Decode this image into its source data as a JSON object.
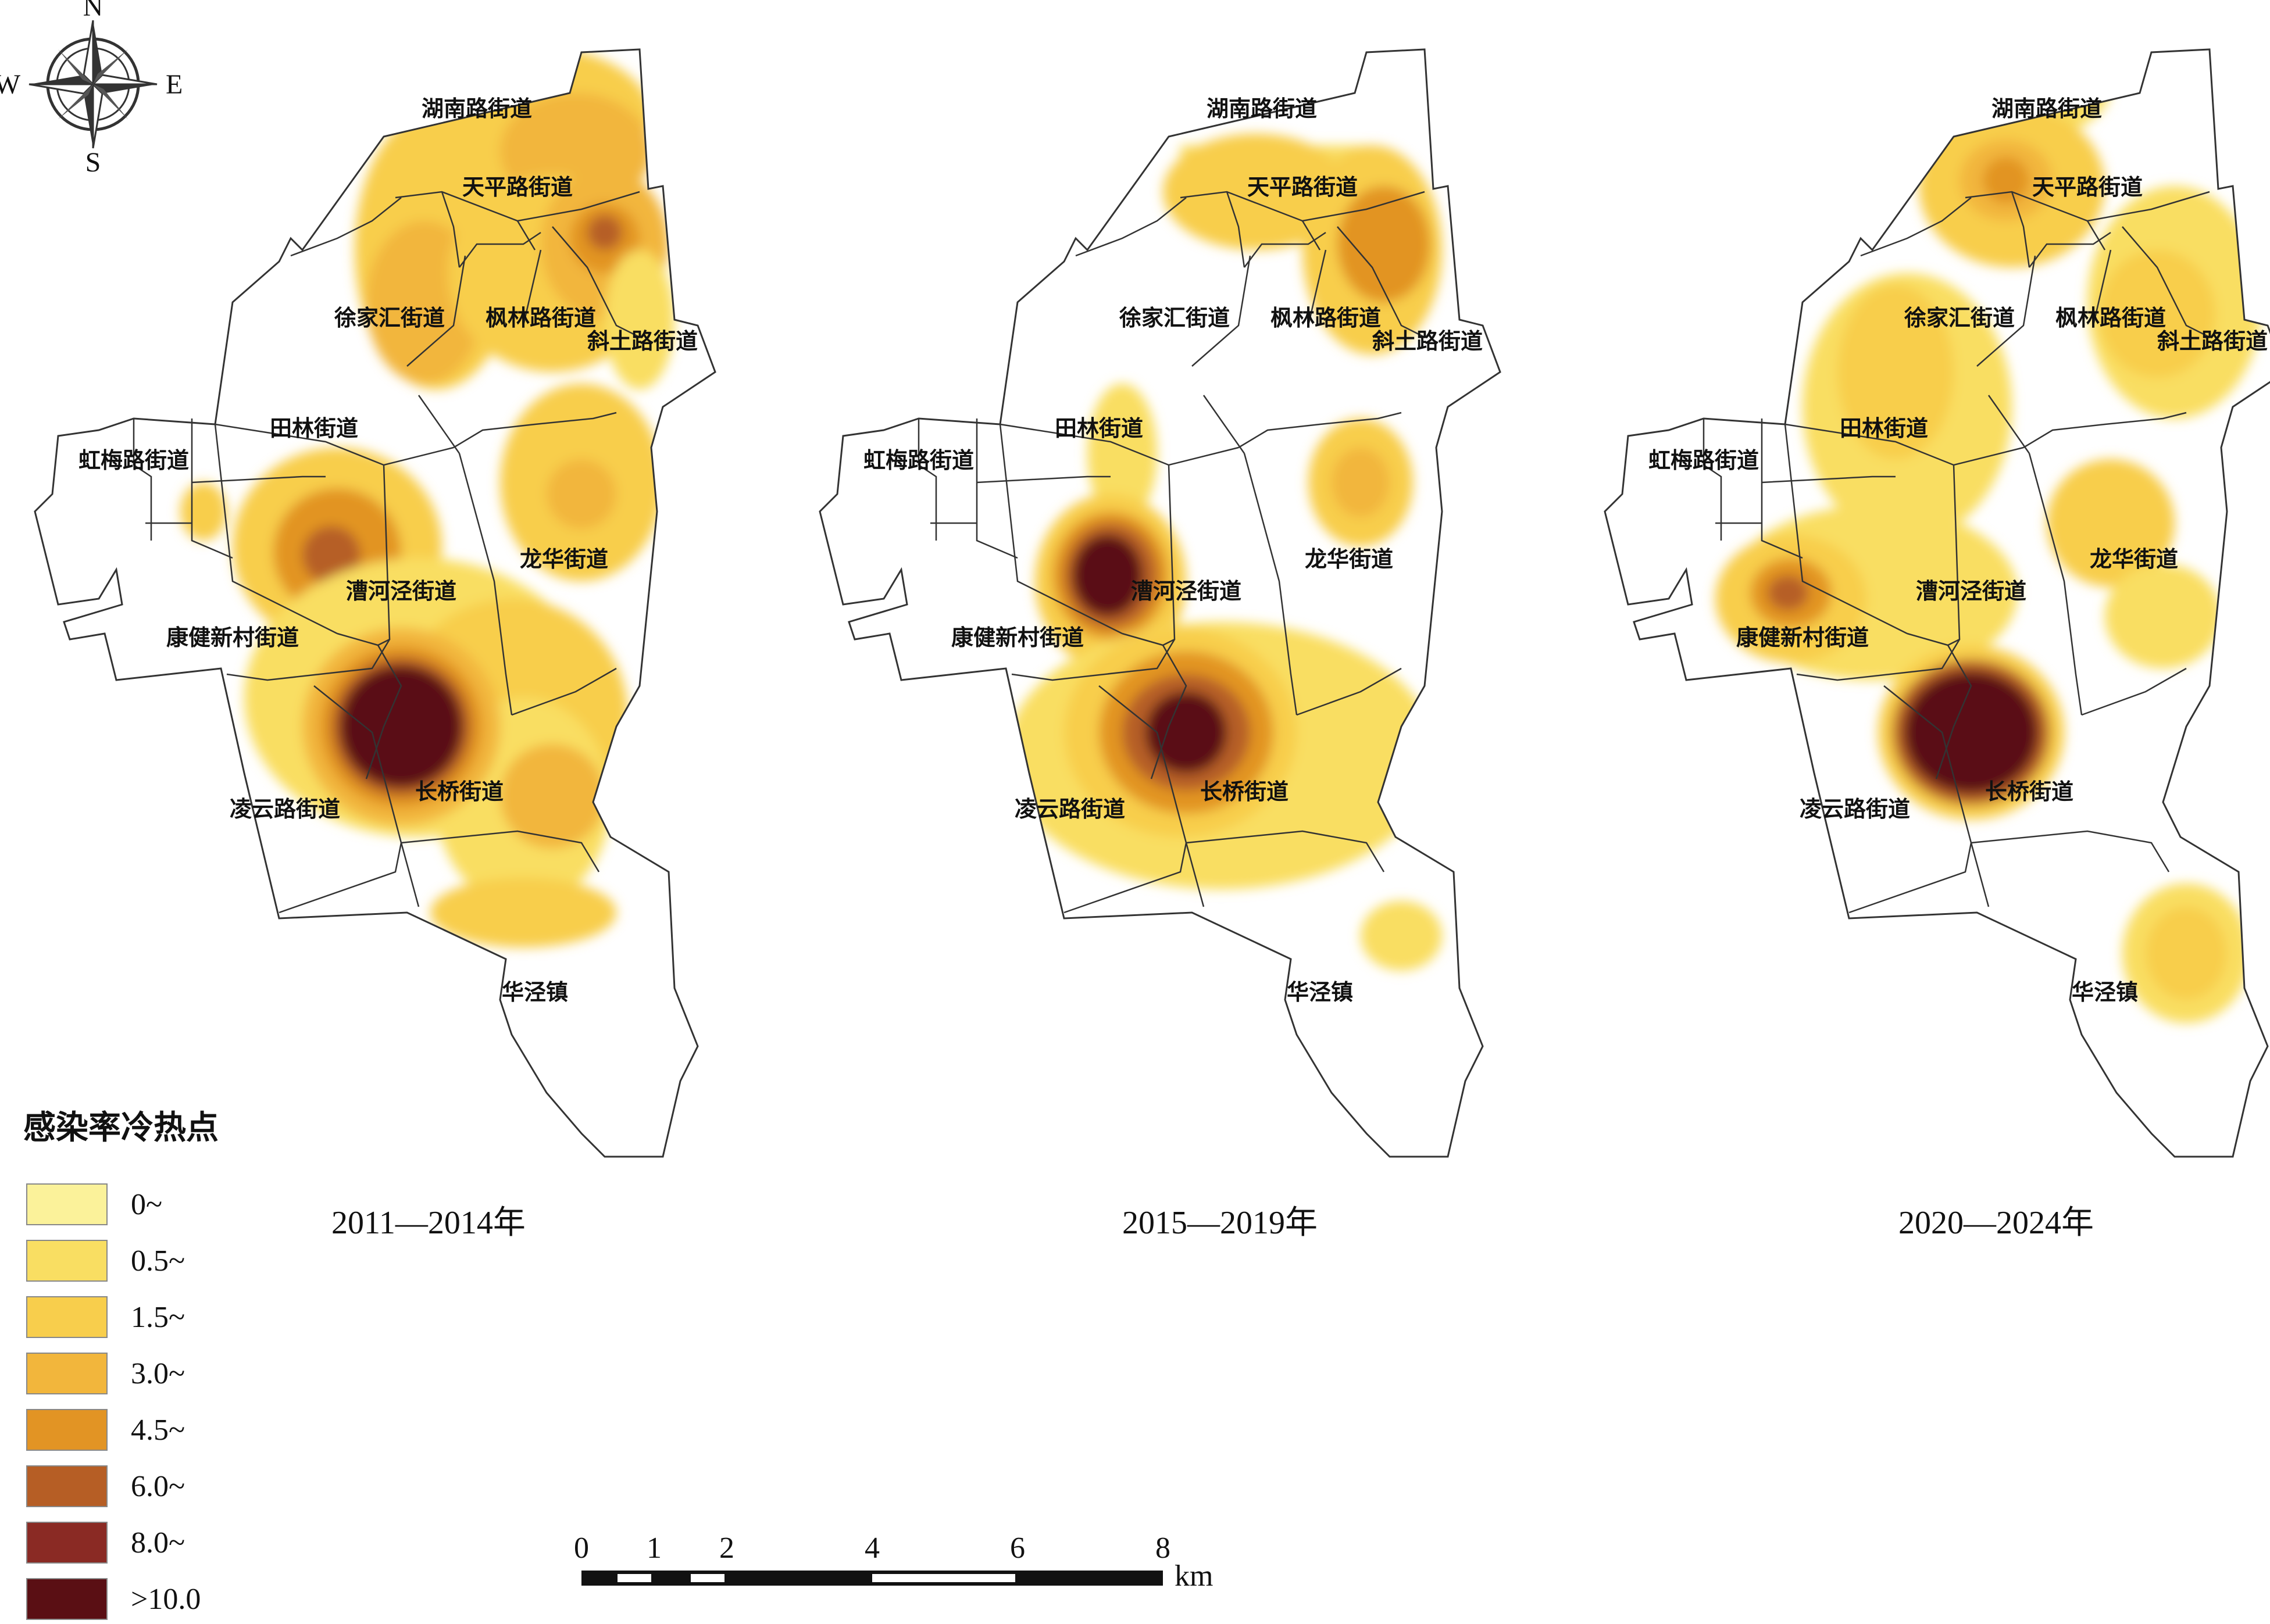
{
  "compass": {
    "n": "N",
    "s": "S",
    "e": "E",
    "w": "W"
  },
  "legend": {
    "title": "感染率冷热点",
    "items": [
      {
        "label": "0~",
        "color": "#fbf29a"
      },
      {
        "label": "0.5~",
        "color": "#f9de62"
      },
      {
        "label": "1.5~",
        "color": "#f8ce4c"
      },
      {
        "label": "3.0~",
        "color": "#f2b63c"
      },
      {
        "label": "4.5~",
        "color": "#e29424"
      },
      {
        "label": "6.0~",
        "color": "#b65e25"
      },
      {
        "label": "8.0~",
        "color": "#8a2a24"
      },
      {
        "label": ">10.0",
        "color": "#5a0f14"
      }
    ]
  },
  "panels": [
    {
      "period": "2011—2014年"
    },
    {
      "period": "2015—2019年"
    },
    {
      "period": "2020—2024年"
    }
  ],
  "subdistricts": {
    "hunan": "湖南路街道",
    "tianping": "天平路街道",
    "xujiahui": "徐家汇街道",
    "fenglin": "枫林路街道",
    "xietu": "斜土路街道",
    "tianlin": "田林街道",
    "hongmei": "虹梅路街道",
    "caohejing": "漕河泾街道",
    "longhua": "龙华街道",
    "kangjian": "康健新村街道",
    "lingyun": "凌云路街道",
    "changqiao": "长桥街道",
    "huajing": "华泾镇"
  },
  "scale_bar": {
    "ticks": [
      "0",
      "1",
      "2",
      "4",
      "6",
      "8"
    ],
    "unit": "km"
  }
}
